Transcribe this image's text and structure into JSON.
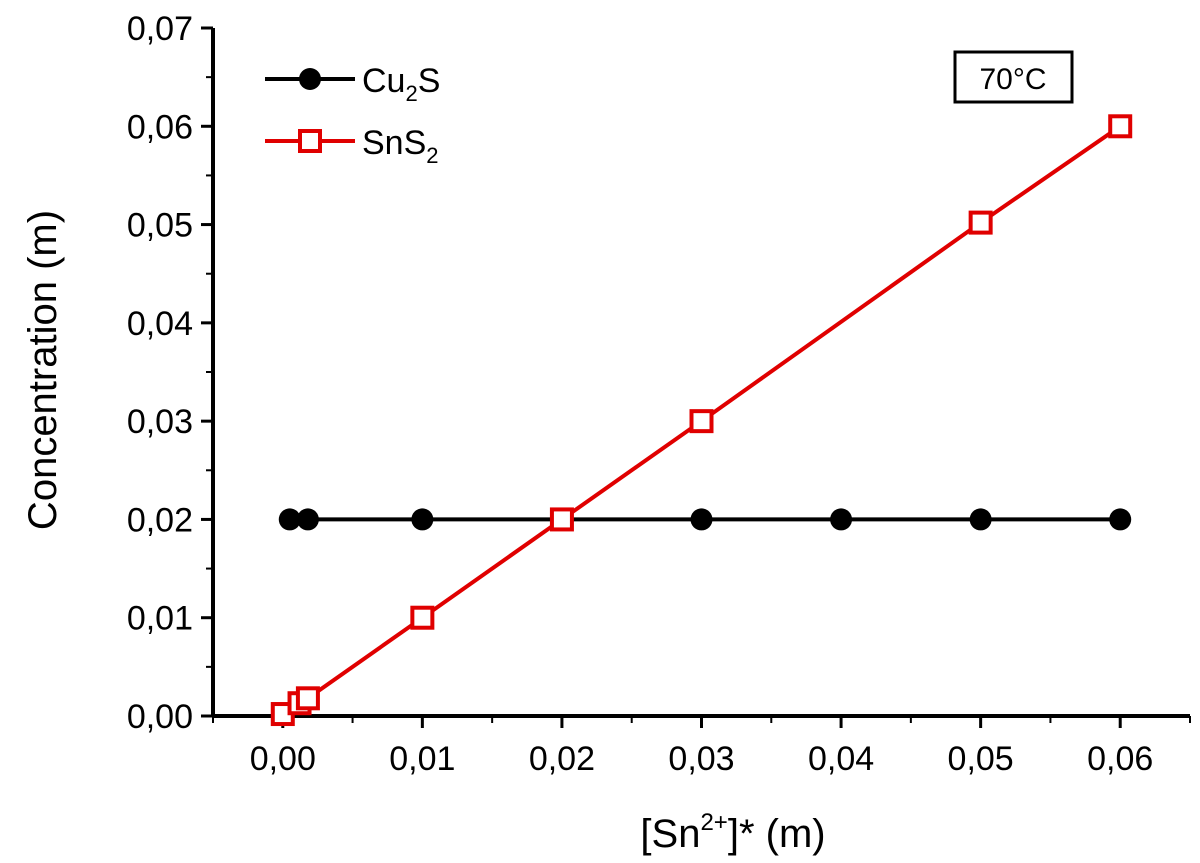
{
  "chart_data": {
    "type": "line",
    "xlabel": {
      "base": "[Sn",
      "sup": "2+",
      "rest": "]* (m)"
    },
    "ylabel": "Concentration (m)",
    "xlim": [
      -0.005,
      0.065
    ],
    "ylim": [
      0.0,
      0.07
    ],
    "x_ticks": [
      {
        "value": 0.0,
        "label": "0,00"
      },
      {
        "value": 0.01,
        "label": "0,01"
      },
      {
        "value": 0.02,
        "label": "0,02"
      },
      {
        "value": 0.03,
        "label": "0,03"
      },
      {
        "value": 0.04,
        "label": "0,04"
      },
      {
        "value": 0.05,
        "label": "0,05"
      },
      {
        "value": 0.06,
        "label": "0,06"
      }
    ],
    "y_ticks": [
      {
        "value": 0.0,
        "label": "0,00"
      },
      {
        "value": 0.01,
        "label": "0,01"
      },
      {
        "value": 0.02,
        "label": "0,02"
      },
      {
        "value": 0.03,
        "label": "0,03"
      },
      {
        "value": 0.04,
        "label": "0,04"
      },
      {
        "value": 0.05,
        "label": "0,05"
      },
      {
        "value": 0.06,
        "label": "0,06"
      },
      {
        "value": 0.07,
        "label": "0,07"
      }
    ],
    "annotation": "70°C",
    "legend_position": "top-left",
    "grid": false,
    "series": [
      {
        "key": "cu2s",
        "name": "Cu2S",
        "label": {
          "base": "Cu",
          "sub": "2",
          "rest": "S"
        },
        "color": "#000000",
        "marker": "filled-circle",
        "x": [
          0.0005,
          0.0018,
          0.01,
          0.03,
          0.04,
          0.05,
          0.06
        ],
        "y": [
          0.02,
          0.02,
          0.02,
          0.02,
          0.02,
          0.02,
          0.02
        ]
      },
      {
        "key": "sns2",
        "name": "SnS2",
        "label": {
          "base": "SnS",
          "sub": "2",
          "rest": ""
        },
        "color": "#e00000",
        "marker": "open-square",
        "x": [
          0.0,
          0.0012,
          0.0018,
          0.01,
          0.02,
          0.03,
          0.05,
          0.06
        ],
        "y": [
          0.0002,
          0.0013,
          0.0018,
          0.01,
          0.02,
          0.03,
          0.0502,
          0.06
        ]
      }
    ]
  }
}
